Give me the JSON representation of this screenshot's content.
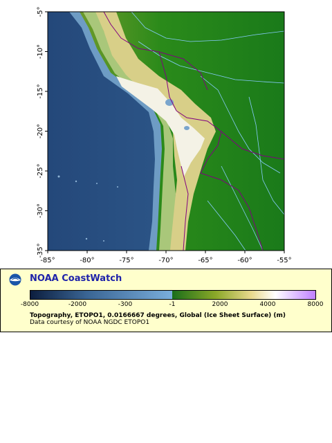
{
  "map": {
    "x_ticks": [
      "-85°",
      "-80°",
      "-75°",
      "-70°",
      "-65°",
      "-60°",
      "-55°"
    ],
    "y_ticks": [
      "-5°",
      "-10°",
      "-15°",
      "-20°",
      "-25°",
      "-30°",
      "-35°"
    ],
    "lon_range": [
      -85,
      -55
    ],
    "lat_range": [
      -35,
      -5
    ]
  },
  "legend": {
    "title": "NOAA CoastWatch",
    "logo": "noaa-logo-icon",
    "colorbar_labels": [
      "-8000",
      "-2000",
      "-300",
      "-1",
      "2000",
      "4000",
      "8000"
    ],
    "caption_main": "Topography, ETOPO1, 0.0166667 degrees, Global (Ice Sheet Surface) (m)",
    "caption_sub": "Data courtesy of NOAA NGDC ETOPO1"
  },
  "colors": {
    "ocean_deep": "#1b3a6b",
    "ocean_shallow": "#7aa5cc",
    "lowland": "#1a7a1a",
    "highland": "#e8e0a0",
    "peaks": "#ffffff",
    "border": "#800080",
    "river": "#88ccff",
    "legend_bg": "#ffffcc",
    "title": "#1e22aa"
  }
}
